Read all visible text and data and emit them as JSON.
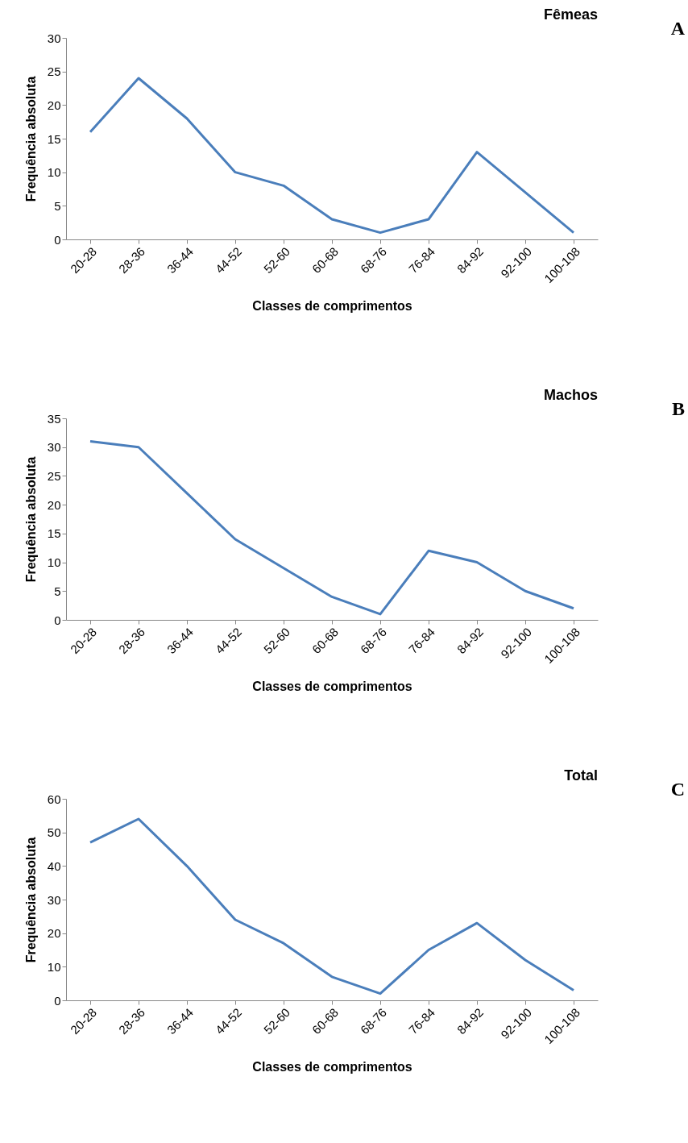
{
  "chart_data": [
    {
      "type": "line",
      "title": "Fêmeas",
      "xlabel": "Classes de comprimentos",
      "ylabel": "Frequência absoluta",
      "annotations": [
        "A"
      ],
      "categories": [
        "20-28",
        "28-36",
        "36-44",
        "44-52",
        "52-60",
        "60-68",
        "68-76",
        "76-84",
        "84-92",
        "92-100",
        "100-108"
      ],
      "series": [
        {
          "color": "#4a7ebb",
          "values": [
            16,
            24,
            18,
            10,
            8,
            3,
            1,
            3,
            13,
            7,
            1
          ]
        }
      ],
      "ylim": [
        0,
        30
      ],
      "yticks": [
        0,
        5,
        10,
        15,
        20,
        25,
        30
      ],
      "grid": false,
      "legend": false
    },
    {
      "type": "line",
      "title": "Machos",
      "xlabel": "Classes de comprimentos",
      "ylabel": "Frequência absoluta",
      "annotations": [
        "B"
      ],
      "categories": [
        "20-28",
        "28-36",
        "36-44",
        "44-52",
        "52-60",
        "60-68",
        "68-76",
        "76-84",
        "84-92",
        "92-100",
        "100-108"
      ],
      "series": [
        {
          "color": "#4a7ebb",
          "values": [
            31,
            30,
            22,
            14,
            9,
            4,
            1,
            12,
            10,
            5,
            2
          ]
        }
      ],
      "ylim": [
        0,
        35
      ],
      "yticks": [
        0,
        5,
        10,
        15,
        20,
        25,
        30,
        35
      ],
      "grid": false,
      "legend": false
    },
    {
      "type": "line",
      "title": "Total",
      "xlabel": "Classes de comprimentos",
      "ylabel": "Frequência absoluta",
      "annotations": [
        "C"
      ],
      "categories": [
        "20-28",
        "28-36",
        "36-44",
        "44-52",
        "52-60",
        "60-68",
        "68-76",
        "76-84",
        "84-92",
        "92-100",
        "100-108"
      ],
      "series": [
        {
          "color": "#4a7ebb",
          "values": [
            47,
            54,
            40,
            24,
            17,
            7,
            2,
            15,
            23,
            12,
            3
          ]
        }
      ],
      "ylim": [
        0,
        60
      ],
      "yticks": [
        0,
        10,
        20,
        30,
        40,
        50,
        60
      ],
      "grid": false,
      "legend": false
    }
  ]
}
